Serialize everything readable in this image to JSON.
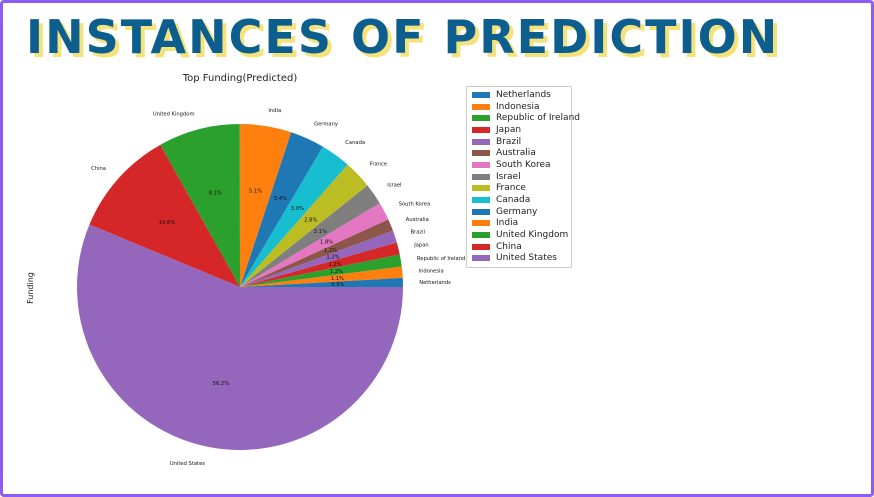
{
  "slide": {
    "title": "INSTANCES OF PREDICTION"
  },
  "colors": {
    "frame": "#8b5cf6",
    "title": "#0b5e8e",
    "title_shadow": "#f6e27a"
  },
  "chart_data": {
    "type": "pie",
    "title": "Top Funding(Predicted)",
    "ylabel": "Funding",
    "start_angle_deg": 0,
    "direction": "counterclockwise",
    "slices": [
      {
        "label": "Netherlands",
        "value": 0.9,
        "pct_label": "0.9%",
        "color": "#1f77b4"
      },
      {
        "label": "Indonesia",
        "value": 1.1,
        "pct_label": "1.1%",
        "color": "#ff7f0e"
      },
      {
        "label": "Republic of Ireland",
        "value": 1.2,
        "pct_label": "1.2%",
        "color": "#2ca02c"
      },
      {
        "label": "Japan",
        "value": 1.2,
        "pct_label": "1.2%",
        "color": "#d62728"
      },
      {
        "label": "Brazil",
        "value": 1.2,
        "pct_label": "1.2%",
        "color": "#9467bd"
      },
      {
        "label": "Australia",
        "value": 1.2,
        "pct_label": "1.2%",
        "color": "#8c564b"
      },
      {
        "label": "South Korea",
        "value": 1.8,
        "pct_label": "1.8%",
        "color": "#e377c2"
      },
      {
        "label": "Israel",
        "value": 2.1,
        "pct_label": "2.1%",
        "color": "#7f7f7f"
      },
      {
        "label": "France",
        "value": 2.8,
        "pct_label": "2.8%",
        "color": "#bcbd22"
      },
      {
        "label": "Canada",
        "value": 3.0,
        "pct_label": "3.0%",
        "color": "#17becf"
      },
      {
        "label": "Germany",
        "value": 3.4,
        "pct_label": "3.4%",
        "color": "#1f77b4"
      },
      {
        "label": "India",
        "value": 5.1,
        "pct_label": "5.1%",
        "color": "#ff7f0e"
      },
      {
        "label": "United Kingdom",
        "value": 8.1,
        "pct_label": "8.1%",
        "color": "#2ca02c"
      },
      {
        "label": "China",
        "value": 10.6,
        "pct_label": "10.6%",
        "color": "#d62728"
      },
      {
        "label": "United States",
        "value": 56.2,
        "pct_label": "56.2%",
        "color": "#9467bd"
      }
    ],
    "legend": {
      "placement": "right",
      "entries": [
        "Netherlands",
        "Indonesia",
        "Republic of Ireland",
        "Japan",
        "Brazil",
        "Australia",
        "South Korea",
        "Israel",
        "France",
        "Canada",
        "Germany",
        "India",
        "United Kingdom",
        "China",
        "United States"
      ]
    }
  }
}
